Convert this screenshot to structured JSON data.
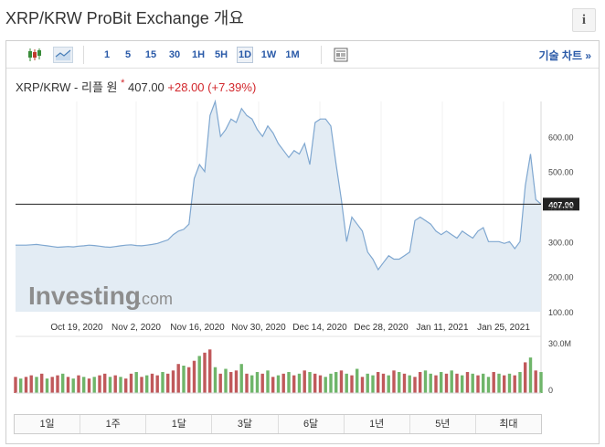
{
  "header": {
    "title": "XRP/KRW ProBit Exchange 개요",
    "info_icon": "i"
  },
  "toolbar": {
    "timeframes": [
      "1",
      "5",
      "15",
      "30",
      "1H",
      "5H",
      "1D",
      "1W",
      "1M"
    ],
    "active_timeframe": "1D",
    "tech_chart_label": "기술 차트 »"
  },
  "quote": {
    "symbol": "XRP/KRW - 리플 원",
    "marker": "*",
    "price": "407.00",
    "change": "+28.00",
    "change_pct": "(+7.39%)"
  },
  "colors": {
    "line": "#7fa7d0",
    "area": "#e3ecf4",
    "up_volume": "#c0595b",
    "down_volume": "#6fb56a",
    "down_text": "#d2262b",
    "link": "#2a5aa8"
  },
  "watermark": {
    "brand": "Investing",
    "suffix": ".com"
  },
  "chart_data": {
    "type": "area",
    "x_tick_labels": [
      "Oct 19, 2020",
      "Nov 2, 2020",
      "Nov 16, 2020",
      "Nov 30, 2020",
      "Dec 14, 2020",
      "Dec 28, 2020",
      "Jan 11, 2021",
      "Jan 25, 2021"
    ],
    "y_tick_labels": [
      "600.00",
      "500.00",
      "400.00",
      "300.00",
      "200.00",
      "100.00"
    ],
    "ylim": [
      100,
      700
    ],
    "current_price_label": "407.00",
    "current_price": 407,
    "values": [
      290,
      290,
      290,
      291,
      292,
      290,
      288,
      286,
      284,
      285,
      286,
      285,
      287,
      288,
      290,
      289,
      287,
      285,
      284,
      286,
      288,
      290,
      291,
      289,
      288,
      290,
      292,
      295,
      300,
      305,
      320,
      330,
      335,
      350,
      480,
      520,
      500,
      660,
      700,
      600,
      620,
      650,
      640,
      680,
      660,
      650,
      620,
      600,
      630,
      610,
      580,
      560,
      540,
      560,
      550,
      580,
      520,
      640,
      650,
      650,
      630,
      520,
      420,
      300,
      370,
      350,
      330,
      270,
      250,
      220,
      240,
      260,
      250,
      250,
      260,
      270,
      360,
      370,
      360,
      350,
      330,
      320,
      330,
      320,
      310,
      330,
      320,
      310,
      330,
      340,
      300,
      300,
      300,
      295,
      300,
      280,
      300,
      460,
      550,
      420,
      407
    ],
    "volume_axis_labels": [
      "30.0M",
      "0"
    ],
    "volume_max": 30,
    "volume": [
      10,
      9,
      10,
      11,
      10,
      12,
      9,
      10,
      11,
      12,
      10,
      9,
      11,
      10,
      9,
      10,
      11,
      12,
      10,
      11,
      10,
      9,
      12,
      13,
      10,
      11,
      12,
      11,
      13,
      12,
      14,
      18,
      17,
      16,
      20,
      23,
      25,
      27,
      16,
      12,
      15,
      13,
      14,
      18,
      12,
      11,
      13,
      12,
      14,
      10,
      11,
      12,
      13,
      11,
      12,
      14,
      13,
      12,
      11,
      10,
      12,
      13,
      14,
      12,
      11,
      15,
      10,
      12,
      11,
      13,
      12,
      11,
      14,
      13,
      12,
      11,
      10,
      13,
      14,
      12,
      11,
      13,
      12,
      14,
      12,
      11,
      13,
      12,
      11,
      12,
      10,
      13,
      12,
      11,
      12,
      11,
      13,
      19,
      22,
      14,
      13
    ],
    "volume_up": [
      1,
      0,
      1,
      1,
      0,
      1,
      0,
      1,
      1,
      0,
      1,
      0,
      1,
      0,
      1,
      0,
      1,
      1,
      0,
      1,
      0,
      1,
      1,
      0,
      1,
      0,
      1,
      1,
      0,
      1,
      1,
      1,
      0,
      1,
      1,
      0,
      1,
      1,
      0,
      1,
      0,
      1,
      1,
      0,
      1,
      0,
      0,
      1,
      0,
      1,
      0,
      1,
      0,
      1,
      0,
      1,
      0,
      1,
      1,
      0,
      0,
      0,
      1,
      0,
      1,
      0,
      1,
      0,
      0,
      1,
      1,
      0,
      1,
      0,
      1,
      0,
      1,
      1,
      0,
      0,
      1,
      0,
      1,
      0,
      1,
      0,
      1,
      0,
      1,
      0,
      0,
      1,
      0,
      1,
      0,
      1,
      0,
      1,
      0,
      1,
      0
    ]
  },
  "range_buttons": [
    "1일",
    "1주",
    "1달",
    "3달",
    "6달",
    "1년",
    "5년",
    "최대"
  ]
}
